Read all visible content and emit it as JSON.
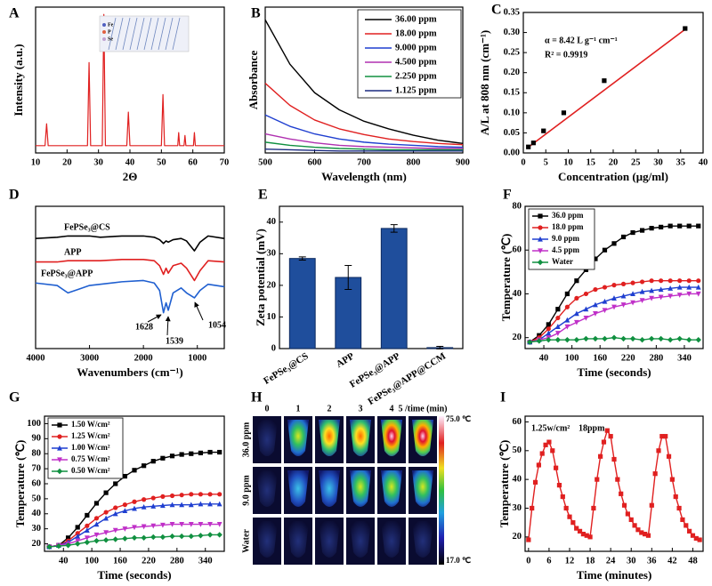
{
  "chart_data": [
    {
      "type": "line",
      "panel_label": "A",
      "xlabel": "2Θ",
      "ylabel": "Intensity (a.u.)",
      "inset_labels": [
        "Fe",
        "P",
        "Se"
      ],
      "xlim": [
        10,
        70
      ],
      "ylim": [
        0,
        100
      ],
      "xticks": [
        10,
        20,
        30,
        40,
        50,
        60,
        70
      ],
      "x": [
        10,
        13,
        13.5,
        14,
        26.5,
        27,
        27.5,
        31.2,
        31.7,
        32.2,
        39,
        39.5,
        40,
        50,
        50.5,
        51,
        55.2,
        55.5,
        55.8,
        57.2,
        57.5,
        57.8,
        60.2,
        60.5,
        60.8,
        70
      ],
      "series": [
        {
          "color": "#e02020",
          "values": [
            5,
            5,
            20,
            5,
            5,
            62,
            5,
            5,
            95,
            5,
            5,
            28,
            5,
            5,
            40,
            5,
            5,
            14,
            5,
            5,
            12,
            5,
            5,
            14,
            5,
            5
          ]
        }
      ]
    },
    {
      "type": "line",
      "panel_label": "B",
      "xlabel": "Wavelength (nm)",
      "ylabel": "Absorbance",
      "legend": "top-right",
      "xlim": [
        500,
        900
      ],
      "ylim": [
        0,
        2.3
      ],
      "xticks": [
        500,
        600,
        700,
        800,
        900
      ],
      "x": [
        500,
        550,
        600,
        650,
        700,
        750,
        800,
        850,
        900
      ],
      "series": [
        {
          "name": "36.00 ppm",
          "color": "#000000",
          "values": [
            2.1,
            1.4,
            0.95,
            0.68,
            0.5,
            0.38,
            0.28,
            0.2,
            0.15
          ]
        },
        {
          "name": "18.00 ppm",
          "color": "#e02020",
          "values": [
            1.1,
            0.75,
            0.52,
            0.38,
            0.29,
            0.22,
            0.18,
            0.15,
            0.13
          ]
        },
        {
          "name": "9.000 ppm",
          "color": "#1f3fd0",
          "values": [
            0.6,
            0.42,
            0.3,
            0.22,
            0.17,
            0.14,
            0.12,
            0.1,
            0.09
          ]
        },
        {
          "name": "4.500 ppm",
          "color": "#b030b0",
          "values": [
            0.3,
            0.22,
            0.16,
            0.12,
            0.1,
            0.09,
            0.08,
            0.07,
            0.07
          ]
        },
        {
          "name": "2.250 ppm",
          "color": "#109040",
          "values": [
            0.17,
            0.12,
            0.09,
            0.07,
            0.06,
            0.05,
            0.05,
            0.05,
            0.05
          ]
        },
        {
          "name": "1.125 ppm",
          "color": "#1a2a80",
          "values": [
            0.06,
            0.05,
            0.04,
            0.03,
            0.03,
            0.03,
            0.03,
            0.03,
            0.03
          ]
        }
      ]
    },
    {
      "type": "scatter",
      "panel_label": "C",
      "xlabel": "Concentration  (μg/ml)",
      "ylabel": "A/L  at 808 nm (cm⁻¹)",
      "annotations": [
        "α = 8.42 L g⁻¹ cm⁻¹",
        "R² = 0.9919"
      ],
      "xlim": [
        0,
        40
      ],
      "ylim": [
        0,
        0.35
      ],
      "xticks": [
        0,
        5,
        10,
        15,
        20,
        25,
        30,
        35,
        40
      ],
      "yticks": [
        {
          "value": 0,
          "label": "0.00"
        },
        {
          "value": 0.05,
          "label": "0.05"
        },
        {
          "value": 0.1,
          "label": "0.10"
        },
        {
          "value": 0.15,
          "label": "0.15"
        },
        {
          "value": 0.2,
          "label": "0.20"
        },
        {
          "value": 0.25,
          "label": "0.25"
        },
        {
          "value": 0.3,
          "label": "0.30"
        },
        {
          "value": 0.35,
          "label": "0.35"
        }
      ],
      "x": [
        1.125,
        2.25,
        4.5,
        9,
        18,
        36
      ],
      "values": [
        0.015,
        0.025,
        0.055,
        0.1,
        0.18,
        0.31
      ],
      "color": "#000000",
      "fit": {
        "color": "#e02020",
        "x": [
          1.125,
          36
        ],
        "values": [
          0.0145,
          0.308
        ]
      }
    },
    {
      "type": "line",
      "panel_label": "D",
      "xlabel": "Wavenumbers (cm⁻¹)",
      "annotations": [
        "1628",
        "1539",
        "1054"
      ],
      "xlim": [
        4000,
        500
      ],
      "ylim": [
        -15,
        100
      ],
      "xticks": [
        4000,
        3000,
        2000,
        1000
      ],
      "x": [
        4000,
        3600,
        3400,
        3200,
        3000,
        2800,
        2400,
        2000,
        1800,
        1700,
        1628,
        1580,
        1539,
        1450,
        1300,
        1200,
        1054,
        950,
        800,
        500
      ],
      "series": [
        {
          "name": "FePSe₃@CS",
          "color": "#000000",
          "values": [
            74,
            75,
            76,
            76,
            76,
            75,
            76,
            76,
            75,
            73,
            70,
            72,
            71,
            73,
            74,
            72,
            64,
            71,
            76,
            74
          ]
        },
        {
          "name": "APP",
          "color": "#e02020",
          "values": [
            55,
            55,
            56,
            56,
            56,
            56,
            57,
            57,
            56,
            52,
            45,
            50,
            46,
            52,
            54,
            50,
            40,
            48,
            56,
            55
          ]
        },
        {
          "name": "FePSe₃@APP",
          "color": "#1f5fd0",
          "values": [
            38,
            36,
            30,
            33,
            36,
            37,
            39,
            40,
            38,
            32,
            14,
            22,
            16,
            30,
            34,
            30,
            26,
            32,
            37,
            35
          ]
        }
      ]
    },
    {
      "type": "bar",
      "panel_label": "E",
      "ylabel": "Zeta potential (mV)",
      "categories": [
        "FePSe₃@CS",
        "APP",
        "FePSe₃@APP",
        "FePSe₃@APP@CCM"
      ],
      "values": [
        28.5,
        22.5,
        38,
        0.3
      ],
      "errors": [
        0.5,
        3.8,
        1.2,
        0.4
      ],
      "color": "#1f4e9c",
      "ylim": [
        0,
        45
      ],
      "yticks": [
        0,
        10,
        20,
        30,
        40
      ]
    },
    {
      "type": "line",
      "panel_label": "F",
      "xlabel": "Time (seconds)",
      "ylabel": "Temperature (℃)",
      "legend": "top-left",
      "xlim": [
        0,
        380
      ],
      "ylim": [
        15,
        80
      ],
      "xticks": [
        40,
        100,
        160,
        220,
        280,
        340
      ],
      "yticks": [
        20,
        40,
        60,
        80
      ],
      "x": [
        10,
        30,
        50,
        70,
        90,
        110,
        130,
        150,
        170,
        190,
        210,
        230,
        250,
        270,
        290,
        310,
        330,
        350,
        370
      ],
      "series": [
        {
          "name": "36.0 ppm",
          "color": "#000000",
          "marker": "square",
          "values": [
            18,
            21,
            26,
            33,
            40,
            46,
            51,
            56,
            60,
            63,
            66,
            68,
            69,
            70,
            70.5,
            71,
            71,
            71,
            71
          ]
        },
        {
          "name": "18.0 ppm",
          "color": "#e02020",
          "marker": "circle",
          "values": [
            18,
            20,
            24,
            29,
            34,
            38,
            40,
            42,
            43,
            44,
            44.5,
            45,
            45.5,
            46,
            46,
            46,
            46,
            46,
            46
          ]
        },
        {
          "name": "9.0 ppm",
          "color": "#1f3fd0",
          "marker": "triangle",
          "values": [
            18,
            19,
            22,
            25,
            28,
            31,
            33,
            35,
            36.5,
            38,
            39,
            40,
            41,
            41.5,
            42,
            42.5,
            43,
            43,
            43
          ]
        },
        {
          "name": "4.5 ppm",
          "color": "#c030c8",
          "marker": "triangle-down",
          "values": [
            18,
            19,
            20,
            22,
            25,
            27,
            29,
            31,
            32.5,
            34,
            35,
            36,
            37,
            38,
            38.5,
            39,
            39.5,
            40,
            40
          ]
        },
        {
          "name": "Water",
          "color": "#109040",
          "marker": "diamond",
          "values": [
            18,
            18.5,
            19,
            19,
            19,
            19,
            19.5,
            19.5,
            19.5,
            20,
            19.5,
            19.5,
            19,
            19.5,
            19.5,
            19,
            19.5,
            19,
            19
          ]
        }
      ]
    },
    {
      "type": "line",
      "panel_label": "G",
      "xlabel": "Time (seconds)",
      "ylabel": "Temperature (℃)",
      "legend": "top-left",
      "xlim": [
        0,
        380
      ],
      "ylim": [
        15,
        105
      ],
      "xticks": [
        40,
        100,
        160,
        220,
        280,
        340
      ],
      "yticks": [
        20,
        30,
        40,
        50,
        60,
        70,
        80,
        90,
        100
      ],
      "x": [
        10,
        30,
        50,
        70,
        90,
        110,
        130,
        150,
        170,
        190,
        210,
        230,
        250,
        270,
        290,
        310,
        330,
        350,
        370
      ],
      "series": [
        {
          "name": "1.50 W/cm²",
          "color": "#000000",
          "marker": "square",
          "values": [
            18,
            19,
            24,
            31,
            39,
            47,
            54,
            60,
            65,
            69,
            72,
            75,
            77,
            78.5,
            79.5,
            80,
            80.5,
            81,
            81
          ]
        },
        {
          "name": "1.25 W/cm²",
          "color": "#e02020",
          "marker": "circle",
          "values": [
            18,
            19,
            22,
            27,
            32,
            37,
            41,
            44,
            46,
            48,
            49.5,
            50.5,
            51.5,
            52,
            52.5,
            53,
            53,
            53,
            53
          ]
        },
        {
          "name": "1.00 W/cm²",
          "color": "#1f3fd0",
          "marker": "triangle",
          "values": [
            18,
            19,
            21,
            25,
            29,
            33,
            37,
            40,
            42,
            43.5,
            44.5,
            45,
            45.5,
            46,
            46,
            46,
            46.5,
            46.5,
            46.5
          ]
        },
        {
          "name": "0.75 W/cm²",
          "color": "#c030c8",
          "marker": "triangle-down",
          "values": [
            18,
            19,
            20,
            22,
            24,
            26,
            27.5,
            29,
            30,
            31,
            31.5,
            32,
            32.5,
            33,
            33,
            33,
            33,
            33,
            33
          ]
        },
        {
          "name": "0.50 W/cm²",
          "color": "#109040",
          "marker": "diamond",
          "values": [
            18,
            18.5,
            19,
            20,
            21,
            22,
            22.5,
            23,
            23.5,
            24,
            24,
            24.5,
            24.5,
            25,
            25,
            25,
            25.5,
            26,
            26
          ]
        }
      ]
    },
    {
      "type": "thermal-image",
      "panel_label": "H",
      "columns": [
        "0",
        "1",
        "2",
        "3",
        "4",
        "5 /time (min)"
      ],
      "rows": [
        "36.0 ppm",
        "9.0 ppm",
        "Water"
      ],
      "colorbar_labels": [
        "75.0 ℃",
        "17.0 ℃"
      ]
    },
    {
      "type": "line",
      "panel_label": "I",
      "xlabel": "Time (minutes)",
      "ylabel": "Temperature (℃)",
      "annotations": [
        "1.25w/cm²",
        "18ppm"
      ],
      "xlim": [
        -1,
        51
      ],
      "ylim": [
        15,
        62
      ],
      "xticks": [
        0,
        6,
        12,
        18,
        24,
        30,
        36,
        42,
        48
      ],
      "yticks": [
        20,
        30,
        40,
        50,
        60
      ],
      "x": [
        0,
        1,
        2,
        3,
        4,
        5,
        6,
        7,
        8,
        9,
        10,
        11,
        12,
        13,
        14,
        15,
        16,
        17,
        18,
        19,
        20,
        21,
        22,
        23,
        24,
        25,
        26,
        27,
        28,
        29,
        30,
        31,
        32,
        33,
        34,
        35,
        36,
        37,
        38,
        39,
        40,
        41,
        42,
        43,
        44,
        45,
        46,
        47,
        48,
        49,
        50
      ],
      "series": [
        {
          "color": "#e02020",
          "marker": "square",
          "values": [
            19,
            30,
            39,
            45,
            49,
            52,
            53,
            50,
            44,
            38,
            34,
            30,
            27,
            25,
            23,
            22,
            21,
            20.5,
            20,
            30,
            40,
            48,
            53,
            57,
            55,
            47,
            40,
            35,
            31,
            28,
            26,
            24,
            22.5,
            21.5,
            21,
            20.5,
            31,
            42,
            50,
            55,
            55,
            48,
            40,
            34,
            30,
            26,
            24,
            22,
            20.5,
            19.5,
            19
          ]
        }
      ]
    }
  ]
}
